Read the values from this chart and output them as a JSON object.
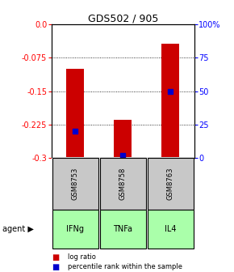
{
  "title": "GDS502 / 905",
  "samples": [
    "GSM8753",
    "GSM8758",
    "GSM8763"
  ],
  "agents": [
    "IFNg",
    "TNFa",
    "IL4"
  ],
  "bar_bottoms": [
    -0.298,
    -0.298,
    -0.298
  ],
  "bar_tops": [
    -0.1,
    -0.215,
    -0.043
  ],
  "percentile_ranks": [
    20,
    2,
    50
  ],
  "ylim_left": [
    -0.3,
    0.0
  ],
  "ylim_right": [
    0,
    100
  ],
  "yticks_left": [
    0.0,
    -0.075,
    -0.15,
    -0.225,
    -0.3
  ],
  "yticks_right": [
    100,
    75,
    50,
    25,
    0
  ],
  "bar_color": "#cc0000",
  "dot_color": "#0000cc",
  "sample_bg": "#c8c8c8",
  "agent_bg": "#aaffaa",
  "legend_bar": "log ratio",
  "legend_dot": "percentile rank within the sample"
}
